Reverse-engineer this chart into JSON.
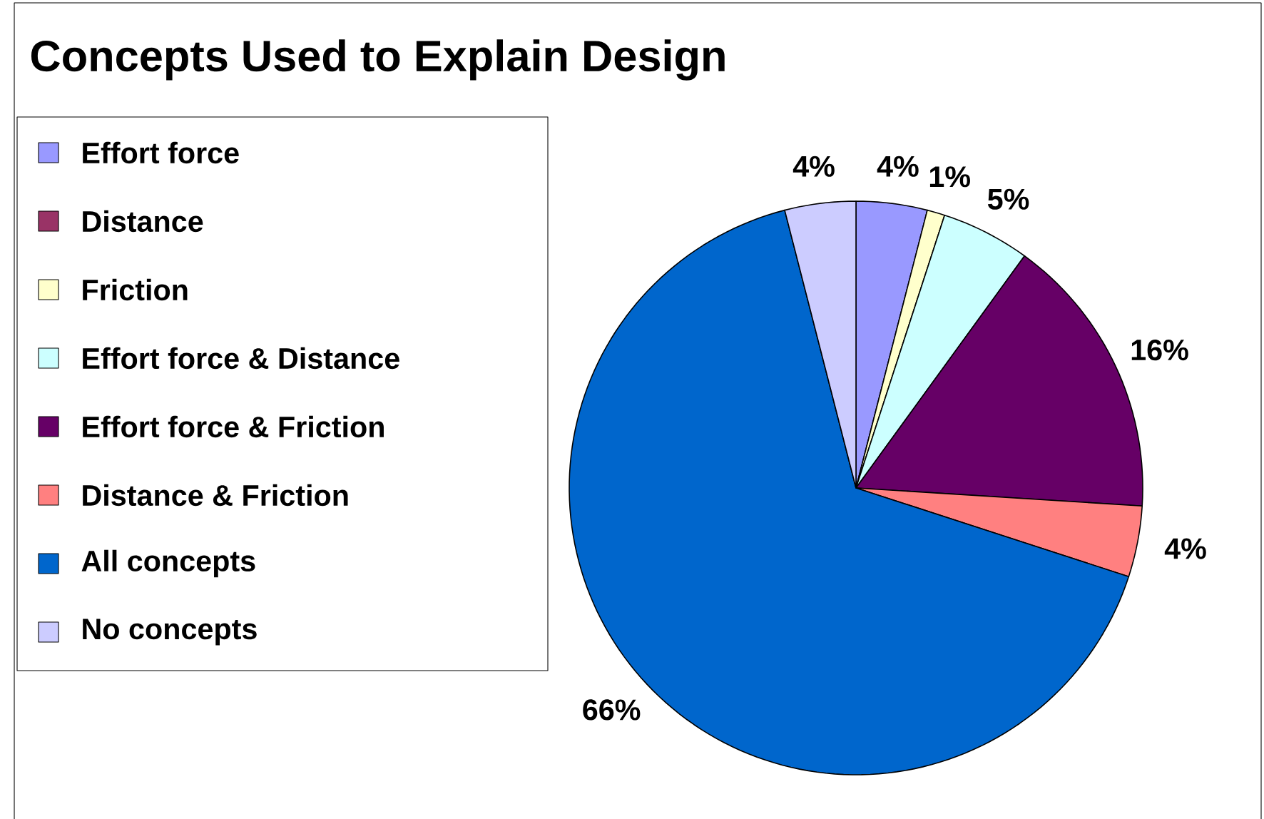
{
  "chart_data": {
    "type": "pie",
    "title": "Concepts Used to Explain Design",
    "categories": [
      "Effort force",
      "Distance",
      "Friction",
      "Effort force & Distance",
      "Effort force & Friction",
      "Distance & Friction",
      "All concepts",
      "No concepts"
    ],
    "values": [
      4,
      0,
      1,
      5,
      16,
      4,
      66,
      4
    ],
    "value_labels": [
      "4%",
      null,
      "1%",
      "5%",
      "16%",
      "4%",
      "66%",
      "4%"
    ],
    "colors": [
      "#9999ff",
      "#993366",
      "#ffffcc",
      "#ccffff",
      "#660066",
      "#ff8080",
      "#0066cc",
      "#ccccff"
    ],
    "legend": "left"
  }
}
